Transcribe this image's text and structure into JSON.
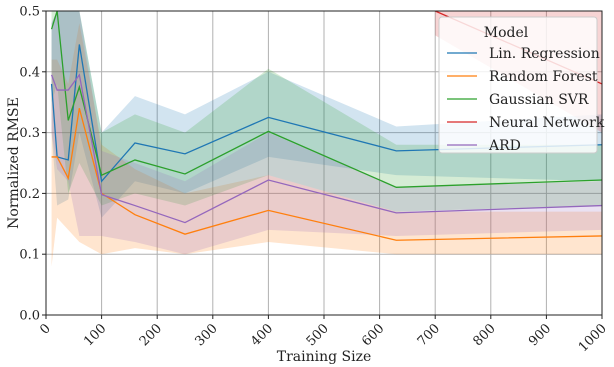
{
  "chart_data": {
    "type": "line",
    "title": "",
    "xlabel": "Training Size",
    "ylabel": "Normalized RMSE",
    "xlim": [
      0,
      1000
    ],
    "ylim": [
      0.0,
      0.5
    ],
    "xticks": [
      0,
      100,
      200,
      300,
      400,
      500,
      600,
      700,
      800,
      900,
      1000
    ],
    "yticks": [
      0.0,
      0.1,
      0.2,
      0.3,
      0.4,
      0.5
    ],
    "xtick_labels": [
      "0",
      "100",
      "200",
      "300",
      "400",
      "500",
      "600",
      "700",
      "800",
      "900",
      "1000"
    ],
    "ytick_labels": [
      "0.0",
      "0.1",
      "0.2",
      "0.3",
      "0.4",
      "0.5"
    ],
    "grid": true,
    "legend_title": "Model",
    "legend_position": "upper-right",
    "x": [
      10,
      20,
      40,
      60,
      100,
      160,
      250,
      400,
      630,
      1000
    ],
    "series": [
      {
        "name": "Lin. Regression",
        "color": "#1f77b4",
        "values": [
          0.38,
          0.26,
          0.255,
          0.445,
          0.22,
          0.283,
          0.265,
          0.325,
          0.27,
          0.28
        ],
        "lower": [
          0.3,
          0.18,
          0.19,
          0.3,
          0.16,
          0.22,
          0.2,
          0.26,
          0.23,
          0.22
        ],
        "upper": [
          0.48,
          0.5,
          0.5,
          0.5,
          0.3,
          0.36,
          0.33,
          0.4,
          0.31,
          0.33
        ]
      },
      {
        "name": "Random Forest",
        "color": "#ff7f0e",
        "values": [
          0.26,
          0.26,
          0.225,
          0.34,
          0.2,
          0.165,
          0.133,
          0.172,
          0.123,
          0.13
        ],
        "lower": [
          0.08,
          0.16,
          0.14,
          0.12,
          0.1,
          0.11,
          0.1,
          0.12,
          0.1,
          0.1
        ],
        "upper": [
          0.42,
          0.42,
          0.38,
          0.48,
          0.28,
          0.24,
          0.2,
          0.23,
          0.17,
          0.17
        ]
      },
      {
        "name": "Gaussian SVR",
        "color": "#2ca02c",
        "values": [
          0.47,
          0.5,
          0.32,
          0.375,
          0.23,
          0.255,
          0.232,
          0.302,
          0.21,
          0.222
        ],
        "lower": [
          0.35,
          0.38,
          0.2,
          0.25,
          0.18,
          0.2,
          0.18,
          0.23,
          0.17,
          0.18
        ],
        "upper": [
          0.5,
          0.5,
          0.5,
          0.5,
          0.3,
          0.33,
          0.3,
          0.405,
          0.28,
          0.28
        ]
      },
      {
        "name": "Neural Network",
        "color": "#d62728",
        "values": [
          null,
          null,
          null,
          null,
          null,
          null,
          null,
          null,
          0.5,
          0.38
        ],
        "lower": [
          null,
          null,
          null,
          null,
          null,
          null,
          null,
          null,
          0.46,
          0.3
        ],
        "upper": [
          null,
          null,
          null,
          null,
          null,
          null,
          null,
          null,
          0.5,
          0.5
        ],
        "x_override": [
          null,
          null,
          null,
          null,
          null,
          null,
          null,
          null,
          700,
          1000
        ]
      },
      {
        "name": "ARD",
        "color": "#9467bd",
        "values": [
          0.395,
          0.37,
          0.37,
          0.395,
          0.198,
          0.18,
          0.152,
          0.222,
          0.168,
          0.18
        ],
        "lower": [
          0.3,
          0.24,
          0.22,
          0.13,
          0.13,
          0.12,
          0.1,
          0.14,
          0.13,
          0.14
        ],
        "upper": [
          0.48,
          0.5,
          0.5,
          0.5,
          0.27,
          0.25,
          0.22,
          0.3,
          0.21,
          0.22
        ]
      }
    ]
  }
}
